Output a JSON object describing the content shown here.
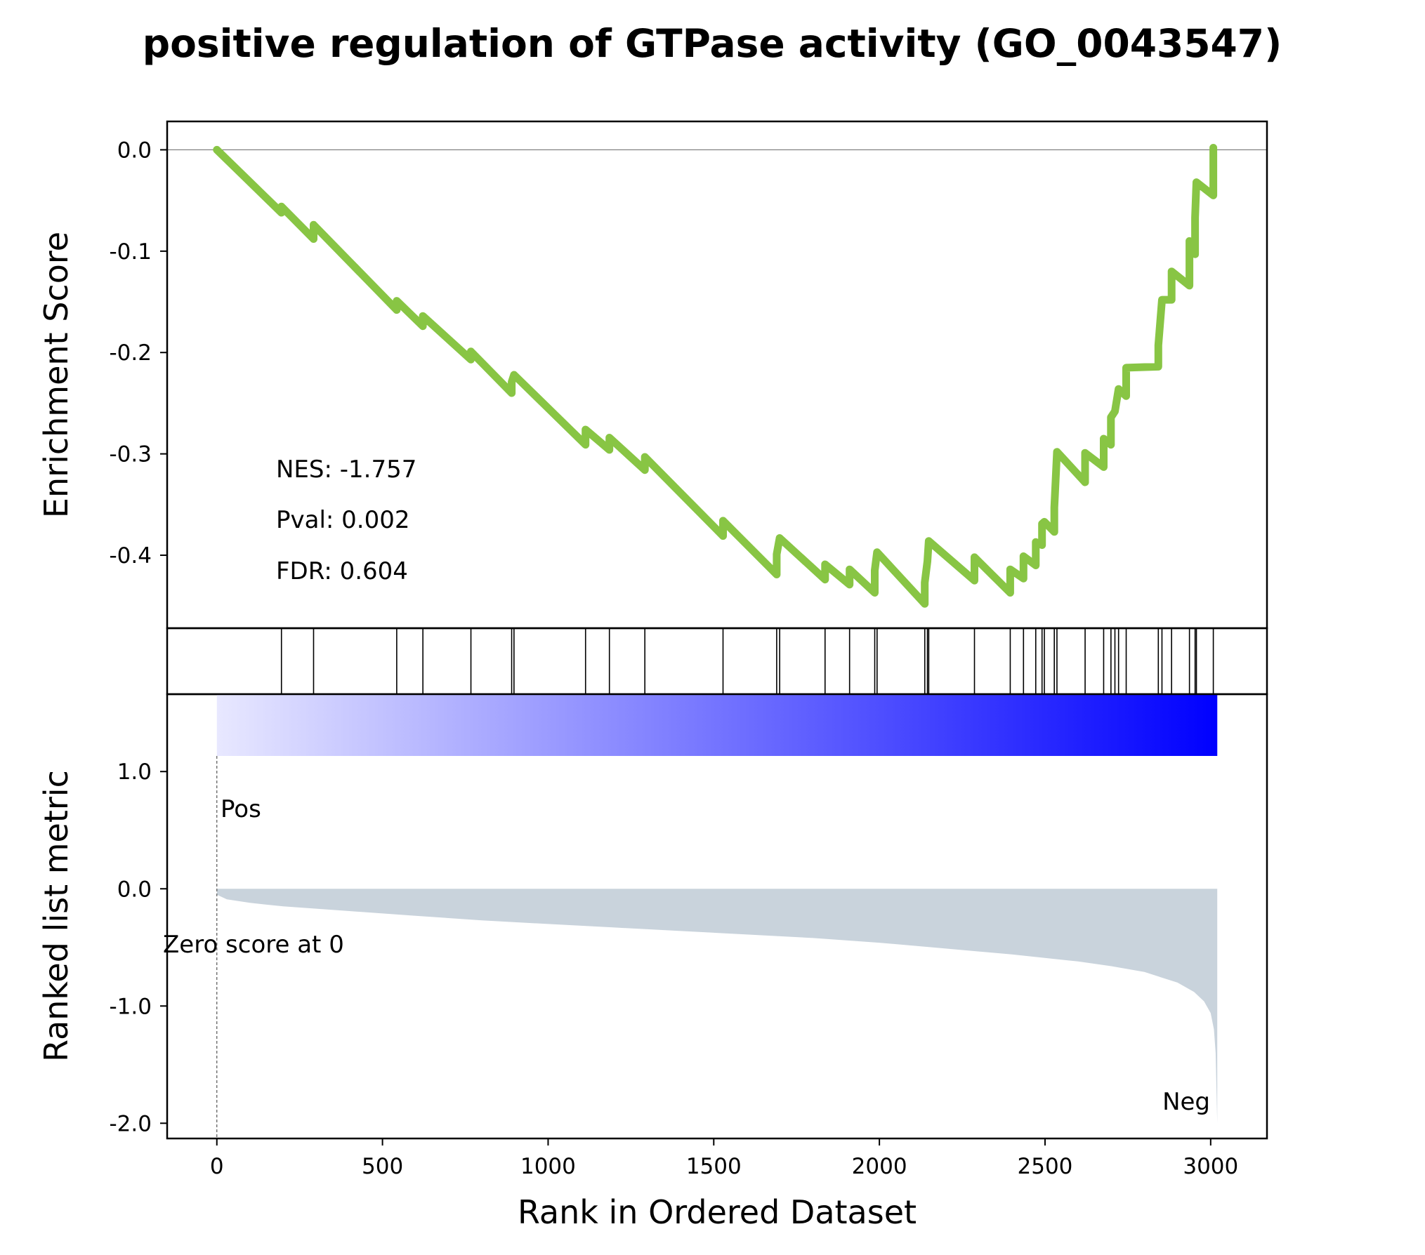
{
  "title": "positive regulation of GTPase activity (GO_0043547)",
  "colors": {
    "es_line": "#88c544",
    "hit_line": "#000000",
    "ranked_fill": "#c9d3dc",
    "pos_text": "#ff0000",
    "neg_text": "#0000ff",
    "gradient_start": "#e8e8ff",
    "gradient_end": "#0000ff"
  },
  "stats": {
    "nes": "NES: -1.757",
    "pval": "Pval: 0.002",
    "fdr": "FDR: 0.604"
  },
  "labels": {
    "pos": "Pos",
    "neg": "Neg",
    "zero_score": "Zero score at 0"
  },
  "chart_data": [
    {
      "type": "line",
      "panel": "enrichment",
      "ylabel": "Enrichment Score",
      "xlim": [
        -150,
        3170
      ],
      "ylim": [
        -0.472,
        0.028
      ],
      "yticks": [
        0.0,
        -0.1,
        -0.2,
        -0.3,
        -0.4
      ],
      "ytick_labels": [
        "0.0",
        "-0.1",
        "-0.2",
        "-0.3",
        "-0.4"
      ],
      "zero_line": true,
      "hits": [
        195,
        292,
        543,
        622,
        767,
        890,
        897,
        1113,
        1185,
        1292,
        1528,
        1690,
        1699,
        1836,
        1910,
        1986,
        1993,
        2137,
        2145,
        2149,
        2287,
        2395,
        2435,
        2472,
        2491,
        2498,
        2528,
        2536,
        2621,
        2677,
        2699,
        2711,
        2722,
        2745,
        2842,
        2853,
        2882,
        2936,
        2953,
        2957,
        3008
      ],
      "es_points": [
        [
          0,
          0.0
        ],
        [
          195,
          -0.062
        ],
        [
          195,
          -0.056
        ],
        [
          292,
          -0.088
        ],
        [
          292,
          -0.074
        ],
        [
          543,
          -0.158
        ],
        [
          543,
          -0.149
        ],
        [
          622,
          -0.174
        ],
        [
          622,
          -0.164
        ],
        [
          767,
          -0.207
        ],
        [
          767,
          -0.199
        ],
        [
          890,
          -0.24
        ],
        [
          890,
          -0.229
        ],
        [
          897,
          -0.222
        ],
        [
          1113,
          -0.291
        ],
        [
          1113,
          -0.276
        ],
        [
          1185,
          -0.296
        ],
        [
          1185,
          -0.284
        ],
        [
          1292,
          -0.316
        ],
        [
          1292,
          -0.303
        ],
        [
          1528,
          -0.381
        ],
        [
          1528,
          -0.366
        ],
        [
          1690,
          -0.419
        ],
        [
          1690,
          -0.399
        ],
        [
          1699,
          -0.383
        ],
        [
          1836,
          -0.424
        ],
        [
          1836,
          -0.409
        ],
        [
          1910,
          -0.429
        ],
        [
          1910,
          -0.414
        ],
        [
          1986,
          -0.437
        ],
        [
          1986,
          -0.415
        ],
        [
          1993,
          -0.397
        ],
        [
          2137,
          -0.448
        ],
        [
          2137,
          -0.427
        ],
        [
          2145,
          -0.406
        ],
        [
          2149,
          -0.386
        ],
        [
          2287,
          -0.425
        ],
        [
          2287,
          -0.402
        ],
        [
          2395,
          -0.437
        ],
        [
          2395,
          -0.414
        ],
        [
          2435,
          -0.423
        ],
        [
          2435,
          -0.401
        ],
        [
          2472,
          -0.41
        ],
        [
          2472,
          -0.387
        ],
        [
          2491,
          -0.39
        ],
        [
          2491,
          -0.369
        ],
        [
          2498,
          -0.367
        ],
        [
          2528,
          -0.377
        ],
        [
          2528,
          -0.353
        ],
        [
          2536,
          -0.298
        ],
        [
          2621,
          -0.328
        ],
        [
          2621,
          -0.299
        ],
        [
          2677,
          -0.313
        ],
        [
          2677,
          -0.285
        ],
        [
          2699,
          -0.291
        ],
        [
          2699,
          -0.264
        ],
        [
          2711,
          -0.258
        ],
        [
          2722,
          -0.236
        ],
        [
          2745,
          -0.243
        ],
        [
          2745,
          -0.215
        ],
        [
          2842,
          -0.214
        ],
        [
          2842,
          -0.193
        ],
        [
          2853,
          -0.148
        ],
        [
          2882,
          -0.148
        ],
        [
          2882,
          -0.12
        ],
        [
          2936,
          -0.134
        ],
        [
          2936,
          -0.09
        ],
        [
          2953,
          -0.103
        ],
        [
          2953,
          -0.067
        ],
        [
          2957,
          -0.032
        ],
        [
          3008,
          -0.045
        ],
        [
          3008,
          0.002
        ]
      ]
    },
    {
      "type": "area",
      "panel": "ranked_metric",
      "ylabel": "Ranked list metric",
      "xlabel": "Rank in Ordered Dataset",
      "xlim": [
        -150,
        3170
      ],
      "ylim": [
        -2.13,
        1.66
      ],
      "xticks": [
        0,
        500,
        1000,
        1500,
        2000,
        2500,
        3000
      ],
      "xtick_labels": [
        "0",
        "500",
        "1000",
        "1500",
        "2000",
        "2500",
        "3000"
      ],
      "yticks": [
        1.0,
        0.0,
        -1.0,
        -2.0
      ],
      "ytick_labels": [
        "1.0",
        "0.0",
        "-1.0",
        "-2.0"
      ],
      "zero_score_rank": 0,
      "metric_points": [
        [
          0,
          -0.05
        ],
        [
          30,
          -0.09
        ],
        [
          100,
          -0.12
        ],
        [
          200,
          -0.15
        ],
        [
          400,
          -0.19
        ],
        [
          600,
          -0.23
        ],
        [
          800,
          -0.27
        ],
        [
          1000,
          -0.3
        ],
        [
          1200,
          -0.33
        ],
        [
          1400,
          -0.36
        ],
        [
          1600,
          -0.39
        ],
        [
          1800,
          -0.42
        ],
        [
          2000,
          -0.46
        ],
        [
          2200,
          -0.51
        ],
        [
          2400,
          -0.56
        ],
        [
          2600,
          -0.62
        ],
        [
          2700,
          -0.66
        ],
        [
          2800,
          -0.71
        ],
        [
          2900,
          -0.8
        ],
        [
          2950,
          -0.88
        ],
        [
          2980,
          -0.96
        ],
        [
          3000,
          -1.06
        ],
        [
          3010,
          -1.2
        ],
        [
          3015,
          -1.4
        ],
        [
          3020,
          -2.0
        ]
      ]
    }
  ]
}
